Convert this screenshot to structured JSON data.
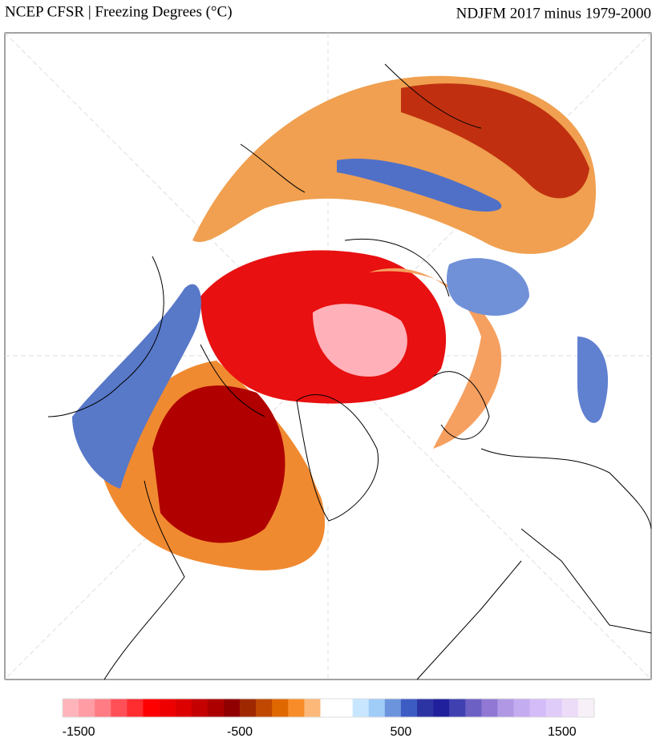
{
  "header": {
    "title_left": "NCEP CFSR | Freezing Degrees (°C)",
    "title_right": "NDJFM 2017 minus 1979-2000"
  },
  "colorbar": {
    "lim": [
      -1600,
      1700
    ],
    "ticks": [
      -1500,
      -500,
      500,
      1500
    ],
    "colors": [
      "#ffb4bc",
      "#ff9ca4",
      "#ff7c84",
      "#ff5058",
      "#ff2c30",
      "#ff0000",
      "#ee0000",
      "#dc0000",
      "#c40000",
      "#ac0000",
      "#900000",
      "#a02800",
      "#c04800",
      "#e06800",
      "#f88c28",
      "#fcb878",
      "#ffffff",
      "#ffffff",
      "#c8e6ff",
      "#a0ccf8",
      "#6c94dc",
      "#3c5cc4",
      "#2c34a4",
      "#20209c",
      "#4040b0",
      "#6c60c4",
      "#9078d4",
      "#b098e4",
      "#c4acf0",
      "#d4bcf8",
      "#e0ccf8",
      "#ecdcf8",
      "#f8f0f8"
    ]
  }
}
